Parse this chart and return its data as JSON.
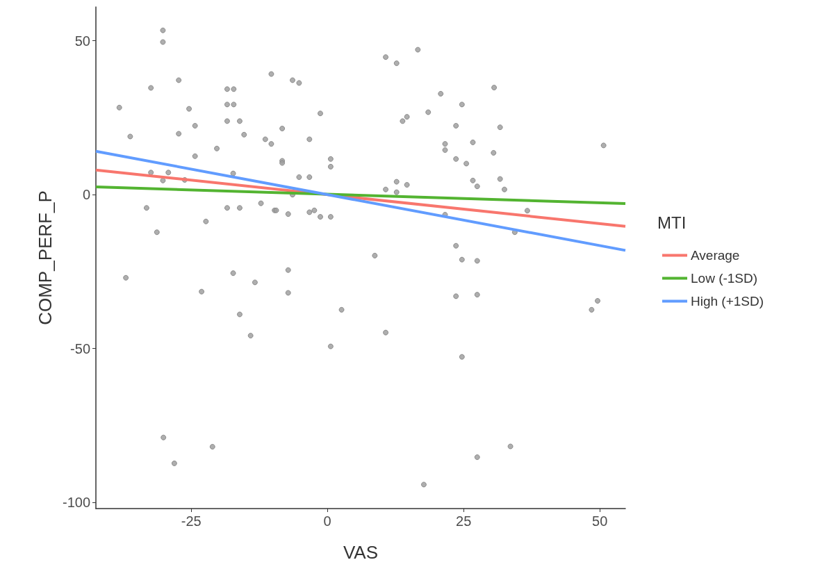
{
  "chart_data": {
    "type": "scatter",
    "xlabel": "VAS",
    "ylabel": "COMP_PERF_P",
    "legend_title": "MTI",
    "legend": "right",
    "grid": false,
    "xlim": [
      -42.5,
      54.7
    ],
    "ylim": [
      -102,
      61
    ],
    "xticks": [
      -25,
      0,
      25,
      50
    ],
    "yticks": [
      -100,
      -50,
      0,
      50
    ],
    "series": [
      {
        "marker": "circle",
        "color": "#a0a0a0",
        "x": [
          -30.2,
          -30.2,
          -10.3,
          -27.3,
          -32.4,
          -18.4,
          -17.2,
          -38.2,
          -25.4,
          -18.4,
          -17.2,
          -18.4,
          -16.1,
          -24.3,
          -36.2,
          -27.3,
          -15.3,
          -11.4,
          -10.3,
          -20.3,
          -24.3,
          -32.4,
          -29.2,
          -30.2,
          -17.3,
          -26.2,
          -33.2,
          -18.4,
          -16.1,
          -12.2,
          -9.7,
          -22.3,
          -31.3,
          10.7,
          12.7,
          16.6,
          -6.4,
          -5.2,
          20.8,
          18.5,
          -1.3,
          13.8,
          14.6,
          -8.3,
          -3.3,
          21.6,
          21.6,
          -8.3,
          -8.3,
          0.6,
          0.6,
          -5.2,
          -3.3,
          10.7,
          12.7,
          14.6,
          12.7,
          -6.4,
          -9.4,
          -7.2,
          -3.3,
          -2.4,
          -1.3,
          0.6,
          21.6,
          8.7,
          30.6,
          24.7,
          23.6,
          31.7,
          26.7,
          50.7,
          30.5,
          23.6,
          25.5,
          26.7,
          27.5,
          31.7,
          32.5,
          36.7,
          34.4,
          23.6,
          24.7,
          27.5,
          23.6,
          27.5,
          48.5,
          49.6,
          24.7,
          33.6,
          27.5,
          -7.2,
          -7.2,
          2.6,
          10.7,
          0.6,
          17.7,
          -37.0,
          -17.3,
          -13.3,
          -23.1,
          -16.1,
          -14.1,
          -30.1,
          -21.1,
          -28.1
        ],
        "values": [
          53.4,
          49.6,
          39.2,
          37.2,
          34.7,
          34.3,
          34.3,
          28.3,
          27.9,
          29.3,
          29.3,
          23.9,
          23.9,
          22.4,
          18.9,
          19.8,
          19.5,
          18.0,
          16.5,
          15.0,
          12.5,
          7.2,
          7.2,
          4.6,
          6.9,
          4.8,
          -4.3,
          -4.3,
          -4.3,
          -2.8,
          -5.1,
          -8.7,
          -12.2,
          44.7,
          42.7,
          47.1,
          37.2,
          36.3,
          32.8,
          26.8,
          26.4,
          23.9,
          25.3,
          21.5,
          18.0,
          16.5,
          14.5,
          11.0,
          10.3,
          11.6,
          9.1,
          5.7,
          5.7,
          1.7,
          4.2,
          3.2,
          0.8,
          0,
          -5.1,
          -6.3,
          -5.7,
          -5.1,
          -7.2,
          -7.2,
          -6.5,
          -19.8,
          34.8,
          29.3,
          22.4,
          21.9,
          17.0,
          16.0,
          13.6,
          11.6,
          10.1,
          4.6,
          2.7,
          5.1,
          1.7,
          -5.2,
          -12.2,
          -16.6,
          -21.1,
          -21.5,
          -33.0,
          -32.5,
          -37.4,
          -34.5,
          -52.7,
          -81.8,
          -85.3,
          -24.5,
          -31.9,
          -37.4,
          -44.8,
          -49.3,
          -94.2,
          -27.0,
          -25.5,
          -28.5,
          -31.5,
          -38.9,
          -45.8,
          -78.9,
          -81.9,
          -87.3
        ]
      },
      {
        "type": "line",
        "marker": "none",
        "name": "Average",
        "color": "#f8766d",
        "x": [
          -42.5,
          54.7
        ],
        "values": [
          8.0,
          -10.3
        ]
      },
      {
        "type": "line",
        "marker": "none",
        "name": "Low (-1SD)",
        "color": "#53b431",
        "x": [
          -42.5,
          54.7
        ],
        "values": [
          2.5,
          -2.9
        ]
      },
      {
        "type": "line",
        "marker": "none",
        "name": "High (+1SD)",
        "color": "#619cff",
        "x": [
          -42.5,
          54.7
        ],
        "values": [
          14.1,
          -18.1
        ]
      }
    ]
  }
}
